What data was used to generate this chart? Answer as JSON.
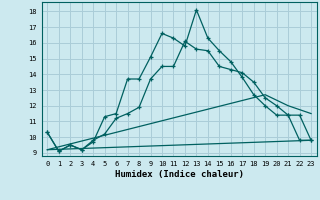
{
  "xlabel": "Humidex (Indice chaleur)",
  "bg_color": "#cce9ef",
  "grid_color": "#aacdd8",
  "line_color": "#006060",
  "xlim": [
    -0.5,
    23.5
  ],
  "ylim": [
    8.8,
    18.6
  ],
  "yticks": [
    9,
    10,
    11,
    12,
    13,
    14,
    15,
    16,
    17,
    18
  ],
  "xticks": [
    0,
    1,
    2,
    3,
    4,
    5,
    6,
    7,
    8,
    9,
    10,
    11,
    12,
    13,
    14,
    15,
    16,
    17,
    18,
    19,
    20,
    21,
    22,
    23
  ],
  "line1_x": [
    0,
    1,
    2,
    3,
    4,
    5,
    6,
    7,
    8,
    9,
    10,
    11,
    12,
    13,
    14,
    15,
    16,
    17,
    18,
    19,
    20,
    21,
    22,
    23
  ],
  "line1_y": [
    10.3,
    9.1,
    9.5,
    9.2,
    9.7,
    11.3,
    11.5,
    13.7,
    13.7,
    15.1,
    16.6,
    16.3,
    15.8,
    18.1,
    16.3,
    15.5,
    14.8,
    13.8,
    12.7,
    12.0,
    11.4,
    11.4,
    9.8,
    9.8
  ],
  "line2_x": [
    0,
    1,
    2,
    3,
    4,
    5,
    6,
    7,
    8,
    9,
    10,
    11,
    12,
    13,
    14,
    15,
    16,
    17,
    18,
    19,
    20,
    21,
    22,
    23
  ],
  "line2_y": [
    10.3,
    9.1,
    9.5,
    9.2,
    9.8,
    10.2,
    11.2,
    11.5,
    11.9,
    13.7,
    14.5,
    14.5,
    16.1,
    15.6,
    15.5,
    14.5,
    14.3,
    14.1,
    13.5,
    12.5,
    12.0,
    11.4,
    11.4,
    9.8
  ],
  "line3_x": [
    0,
    19,
    21,
    23
  ],
  "line3_y": [
    9.2,
    12.7,
    12.0,
    11.5
  ],
  "line4_x": [
    0,
    23
  ],
  "line4_y": [
    9.2,
    9.8
  ]
}
